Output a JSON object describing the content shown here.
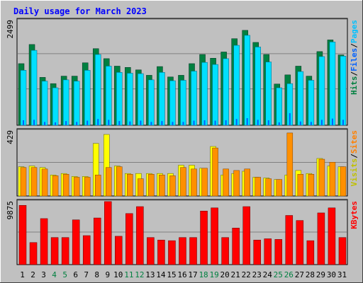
{
  "title": "Daily usage for March 2023",
  "colors": {
    "background": "#c0c0c0",
    "title": "#0000ff",
    "hits": "#008040",
    "files": "#00c0ff",
    "pages": "#00a0a0",
    "visits": "#ffff00",
    "sites": "#ff8000",
    "kbytes": "#ff0000",
    "weekend_label": "#008040",
    "weekday_label": "#000000",
    "grid": "#808080"
  },
  "chart_data": [
    {
      "type": "bar",
      "panel": "hits-files-pages",
      "categories": [
        "1",
        "2",
        "3",
        "4",
        "5",
        "6",
        "7",
        "8",
        "9",
        "10",
        "11",
        "12",
        "13",
        "14",
        "15",
        "16",
        "17",
        "18",
        "19",
        "20",
        "21",
        "22",
        "23",
        "24",
        "25",
        "26",
        "27",
        "28",
        "29",
        "30",
        "31"
      ],
      "y_tick_label": "2499",
      "ylim": [
        0,
        2499
      ],
      "legend": [
        "Pages",
        "/",
        "Files",
        "/",
        "Hits"
      ],
      "series": [
        {
          "name": "Hits",
          "values": [
            1480,
            1940,
            1150,
            1000,
            1180,
            1180,
            1500,
            1840,
            1600,
            1420,
            1390,
            1330,
            1200,
            1410,
            1160,
            1200,
            1480,
            1700,
            1610,
            1760,
            2080,
            2280,
            1990,
            1700,
            990,
            1210,
            1420,
            1180,
            1770,
            2050,
            1690
          ]
        },
        {
          "name": "Files",
          "values": [
            1320,
            1800,
            1060,
            900,
            1090,
            1060,
            1320,
            1700,
            1420,
            1270,
            1250,
            1240,
            1090,
            1270,
            1070,
            1080,
            1300,
            1510,
            1460,
            1600,
            1920,
            2160,
            1880,
            1520,
            900,
            1000,
            1290,
            1080,
            1650,
            2000,
            1660
          ]
        },
        {
          "name": "Pages",
          "values": [
            120,
            130,
            80,
            70,
            100,
            80,
            110,
            150,
            130,
            100,
            90,
            110,
            80,
            100,
            80,
            80,
            110,
            120,
            110,
            120,
            150,
            170,
            130,
            120,
            70,
            290,
            90,
            80,
            130,
            160,
            130
          ]
        }
      ]
    },
    {
      "type": "bar",
      "panel": "visits-sites",
      "categories": [
        "1",
        "2",
        "3",
        "4",
        "5",
        "6",
        "7",
        "8",
        "9",
        "10",
        "11",
        "12",
        "13",
        "14",
        "15",
        "16",
        "17",
        "18",
        "19",
        "20",
        "21",
        "22",
        "23",
        "24",
        "25",
        "26",
        "27",
        "28",
        "29",
        "30",
        "31"
      ],
      "y_tick_label": "429",
      "ylim": [
        0,
        429
      ],
      "legend": [
        "Sites",
        "/",
        "Visits"
      ],
      "series": [
        {
          "name": "Visits",
          "values": [
            195,
            200,
            190,
            140,
            150,
            130,
            130,
            350,
            410,
            200,
            150,
            150,
            150,
            150,
            150,
            205,
            205,
            185,
            330,
            140,
            150,
            165,
            125,
            120,
            110,
            140,
            170,
            150,
            250,
            200,
            195
          ]
        },
        {
          "name": "Sites",
          "values": [
            190,
            190,
            180,
            135,
            145,
            125,
            125,
            140,
            190,
            195,
            145,
            115,
            145,
            140,
            135,
            190,
            180,
            185,
            320,
            180,
            170,
            180,
            125,
            115,
            110,
            420,
            145,
            145,
            245,
            225,
            195
          ]
        }
      ]
    },
    {
      "type": "bar",
      "panel": "kbytes",
      "categories": [
        "1",
        "2",
        "3",
        "4",
        "5",
        "6",
        "7",
        "8",
        "9",
        "10",
        "11",
        "12",
        "13",
        "14",
        "15",
        "16",
        "17",
        "18",
        "19",
        "20",
        "21",
        "22",
        "23",
        "24",
        "25",
        "26",
        "27",
        "28",
        "29",
        "30",
        "31"
      ],
      "y_tick_label": "9875",
      "ylim": [
        0,
        9875
      ],
      "legend": [
        "KBytes"
      ],
      "series": [
        {
          "name": "KBytes",
          "values": [
            9400,
            3500,
            7300,
            4300,
            4300,
            7100,
            4600,
            7400,
            10000,
            4500,
            8100,
            9200,
            4300,
            3900,
            3800,
            4300,
            4300,
            8500,
            9000,
            4300,
            5800,
            9200,
            3900,
            4100,
            4000,
            7800,
            7000,
            3800,
            8200,
            9000,
            4300
          ]
        }
      ]
    }
  ],
  "weekend_days": [
    4,
    5,
    11,
    12,
    18,
    19,
    25,
    26
  ]
}
